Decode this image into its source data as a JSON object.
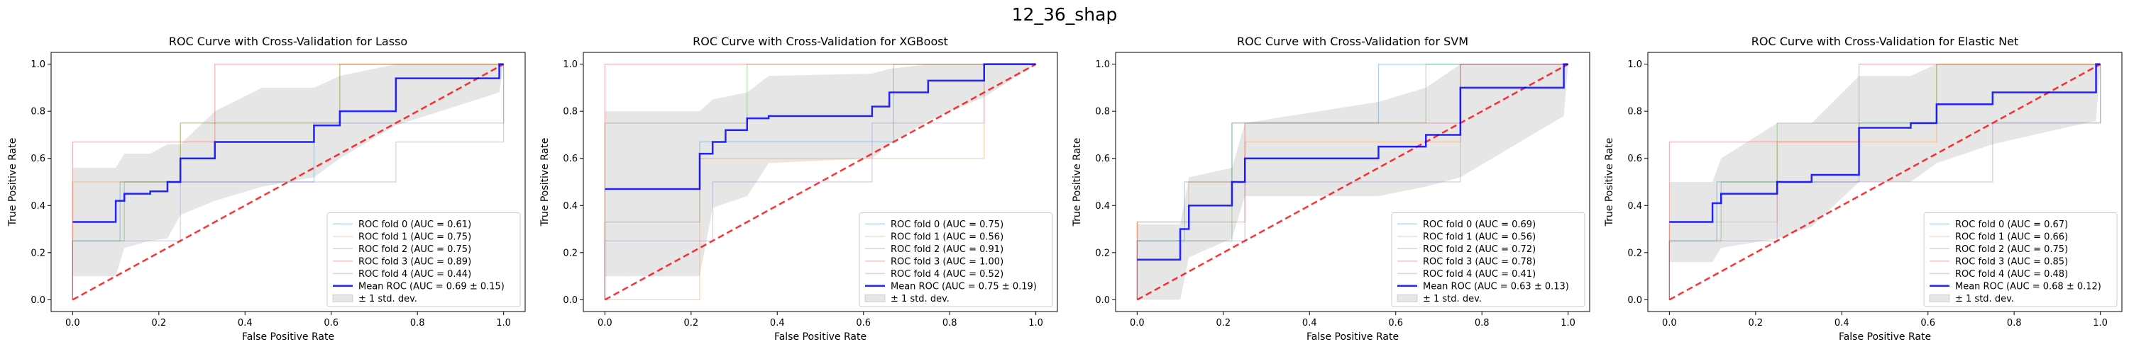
{
  "figure": {
    "suptitle": "12_36_shap"
  },
  "chart_data": [
    {
      "type": "line",
      "title": "ROC Curve with Cross-Validation for Lasso",
      "xlabel": "False Positive Rate",
      "ylabel": "True Positive Rate",
      "xlim": [
        -0.05,
        1.05
      ],
      "ylim": [
        -0.05,
        1.05
      ],
      "xticks": [
        "0.0",
        "0.2",
        "0.4",
        "0.6",
        "0.8",
        "1.0"
      ],
      "yticks": [
        "0.0",
        "0.2",
        "0.4",
        "0.6",
        "0.8",
        "1.0"
      ],
      "grid": false,
      "legend_position": "lower right",
      "series": [
        {
          "name": "ROC fold 0 (AUC = 0.61)",
          "color": "#1f77b4",
          "x": [
            0,
            0,
            0.11,
            0.11,
            0.56,
            0.56,
            1,
            1
          ],
          "y": [
            0,
            0.25,
            0.25,
            0.5,
            0.5,
            0.75,
            0.75,
            1
          ]
        },
        {
          "name": "ROC fold 1 (AUC = 0.75)",
          "color": "#ff7f0e",
          "x": [
            0,
            0,
            0.25,
            0.25,
            0.62,
            0.62,
            1
          ],
          "y": [
            0,
            0.5,
            0.5,
            0.75,
            0.75,
            1,
            1
          ]
        },
        {
          "name": "ROC fold 2 (AUC = 0.75)",
          "color": "#2ca02c",
          "x": [
            0,
            0,
            0.12,
            0.12,
            0.25,
            0.25,
            0.62,
            0.62,
            1
          ],
          "y": [
            0,
            0.25,
            0.25,
            0.5,
            0.5,
            0.75,
            0.75,
            1,
            1
          ]
        },
        {
          "name": "ROC fold 3 (AUC = 0.89)",
          "color": "#d62728",
          "x": [
            0,
            0,
            0.33,
            0.33,
            1,
            1
          ],
          "y": [
            0,
            0.67,
            0.67,
            1,
            1,
            1
          ]
        },
        {
          "name": "ROC fold 4 (AUC = 0.44)",
          "color": "#9467bd",
          "x": [
            0,
            0,
            0.25,
            0.25,
            0.75,
            0.75,
            1,
            1
          ],
          "y": [
            0,
            0.25,
            0.25,
            0.5,
            0.5,
            0.67,
            0.67,
            1
          ]
        }
      ],
      "mean": {
        "name": "Mean ROC (AUC = 0.69 ± 0.15)",
        "color": "#0000ff",
        "x": [
          0,
          0.1,
          0.1,
          0.12,
          0.12,
          0.18,
          0.18,
          0.22,
          0.22,
          0.25,
          0.25,
          0.33,
          0.33,
          0.44,
          0.44,
          0.56,
          0.56,
          0.62,
          0.62,
          0.75,
          0.75,
          0.99,
          0.99,
          1
        ],
        "y": [
          0.33,
          0.33,
          0.42,
          0.42,
          0.45,
          0.45,
          0.46,
          0.46,
          0.5,
          0.5,
          0.6,
          0.6,
          0.67,
          0.67,
          0.67,
          0.67,
          0.74,
          0.74,
          0.8,
          0.8,
          0.94,
          0.94,
          1,
          1
        ]
      },
      "std_band": {
        "name": "± 1 std. dev.",
        "color": "#808080",
        "x": [
          0,
          0.1,
          0.12,
          0.18,
          0.22,
          0.25,
          0.33,
          0.44,
          0.56,
          0.62,
          0.75,
          0.99,
          1
        ],
        "upper": [
          0.56,
          0.56,
          0.62,
          0.62,
          0.66,
          0.66,
          0.8,
          0.9,
          0.9,
          0.95,
          1,
          1,
          1
        ],
        "lower": [
          0.1,
          0.1,
          0.22,
          0.25,
          0.26,
          0.36,
          0.42,
          0.48,
          0.52,
          0.6,
          0.74,
          0.88,
          1
        ]
      },
      "chance": {
        "color": "#ff0000",
        "x": [
          0,
          1
        ],
        "y": [
          0,
          1
        ]
      }
    },
    {
      "type": "line",
      "title": "ROC Curve with Cross-Validation for XGBoost",
      "xlabel": "False Positive Rate",
      "ylabel": "True Positive Rate",
      "xlim": [
        -0.05,
        1.05
      ],
      "ylim": [
        -0.05,
        1.05
      ],
      "xticks": [
        "0.0",
        "0.2",
        "0.4",
        "0.6",
        "0.8",
        "1.0"
      ],
      "yticks": [
        "0.0",
        "0.2",
        "0.4",
        "0.6",
        "0.8",
        "1.0"
      ],
      "grid": false,
      "legend_position": "lower right",
      "series": [
        {
          "name": "ROC fold 0 (AUC = 0.75)",
          "color": "#1f77b4",
          "x": [
            0,
            0,
            0.22,
            0.22,
            0.67,
            0.67,
            1
          ],
          "y": [
            0,
            0.33,
            0.33,
            0.67,
            0.67,
            1,
            1
          ]
        },
        {
          "name": "ROC fold 1 (AUC = 0.56)",
          "color": "#ff7f0e",
          "x": [
            0,
            0,
            0.22,
            0.22,
            0.88,
            0.88,
            1
          ],
          "y": [
            0,
            0,
            0,
            0.6,
            0.6,
            1,
            1
          ]
        },
        {
          "name": "ROC fold 2 (AUC = 0.91)",
          "color": "#2ca02c",
          "x": [
            0,
            0,
            0.33,
            0.33,
            1
          ],
          "y": [
            0,
            0.75,
            0.75,
            1,
            1
          ]
        },
        {
          "name": "ROC fold 3 (AUC = 1.00)",
          "color": "#d62728",
          "x": [
            0,
            0,
            1
          ],
          "y": [
            0,
            1,
            1
          ]
        },
        {
          "name": "ROC fold 4 (AUC = 0.52)",
          "color": "#9467bd",
          "x": [
            0,
            0,
            0.25,
            0.25,
            0.62,
            0.62,
            0.88,
            0.88,
            1
          ],
          "y": [
            0,
            0.25,
            0.25,
            0.5,
            0.5,
            0.75,
            0.75,
            1,
            1
          ]
        }
      ],
      "mean": {
        "name": "Mean ROC (AUC = 0.75 ± 0.19)",
        "color": "#0000ff",
        "x": [
          0,
          0.22,
          0.22,
          0.25,
          0.25,
          0.28,
          0.28,
          0.33,
          0.33,
          0.38,
          0.38,
          0.62,
          0.62,
          0.66,
          0.66,
          0.75,
          0.75,
          0.88,
          0.88,
          1
        ],
        "y": [
          0.47,
          0.47,
          0.62,
          0.62,
          0.67,
          0.67,
          0.72,
          0.72,
          0.77,
          0.77,
          0.78,
          0.78,
          0.82,
          0.82,
          0.88,
          0.88,
          0.93,
          0.93,
          1,
          1
        ]
      },
      "std_band": {
        "name": "± 1 std. dev.",
        "color": "#808080",
        "x": [
          0,
          0.22,
          0.25,
          0.33,
          0.38,
          0.62,
          0.66,
          0.75,
          0.88,
          1
        ],
        "upper": [
          0.8,
          0.8,
          0.85,
          0.88,
          0.95,
          0.96,
          0.98,
          1,
          1,
          1
        ],
        "lower": [
          0.1,
          0.1,
          0.39,
          0.44,
          0.58,
          0.6,
          0.66,
          0.76,
          0.86,
          1
        ]
      },
      "chance": {
        "color": "#ff0000",
        "x": [
          0,
          1
        ],
        "y": [
          0,
          1
        ]
      }
    },
    {
      "type": "line",
      "title": "ROC Curve with Cross-Validation for SVM",
      "xlabel": "False Positive Rate",
      "ylabel": "True Positive Rate",
      "xlim": [
        -0.05,
        1.05
      ],
      "ylim": [
        -0.05,
        1.05
      ],
      "xticks": [
        "0.0",
        "0.2",
        "0.4",
        "0.6",
        "0.8",
        "1.0"
      ],
      "yticks": [
        "0.0",
        "0.2",
        "0.4",
        "0.6",
        "0.8",
        "1.0"
      ],
      "grid": false,
      "legend_position": "lower right",
      "series": [
        {
          "name": "ROC fold 0 (AUC = 0.69)",
          "color": "#1f77b4",
          "x": [
            0,
            0,
            0.11,
            0.11,
            0.22,
            0.22,
            0.56,
            0.56,
            1
          ],
          "y": [
            0,
            0.25,
            0.25,
            0.5,
            0.5,
            0.75,
            0.75,
            1,
            1
          ]
        },
        {
          "name": "ROC fold 1 (AUC = 0.56)",
          "color": "#ff7f0e",
          "x": [
            0,
            0,
            0.12,
            0.12,
            0.25,
            0.25,
            0.75,
            0.75,
            1
          ],
          "y": [
            0,
            0.33,
            0.33,
            0.5,
            0.5,
            0.67,
            0.67,
            1,
            1
          ]
        },
        {
          "name": "ROC fold 2 (AUC = 0.72)",
          "color": "#2ca02c",
          "x": [
            0,
            0,
            0.22,
            0.22,
            0.67,
            0.67,
            1
          ],
          "y": [
            0,
            0.25,
            0.25,
            0.75,
            0.75,
            1,
            1
          ]
        },
        {
          "name": "ROC fold 3 (AUC = 0.78)",
          "color": "#d62728",
          "x": [
            0,
            0,
            0.25,
            0.25,
            0.75,
            0.75,
            1
          ],
          "y": [
            0,
            0.33,
            0.33,
            0.75,
            0.75,
            1,
            1
          ]
        },
        {
          "name": "ROC fold 4 (AUC = 0.41)",
          "color": "#9467bd",
          "x": [
            0,
            0,
            0.25,
            0.25,
            0.75,
            0.75,
            1
          ],
          "y": [
            0,
            0.25,
            0.25,
            0.5,
            0.5,
            1,
            1
          ]
        }
      ],
      "mean": {
        "name": "Mean ROC (AUC = 0.63 ± 0.13)",
        "color": "#0000ff",
        "x": [
          0,
          0.1,
          0.1,
          0.12,
          0.12,
          0.22,
          0.22,
          0.25,
          0.25,
          0.56,
          0.56,
          0.67,
          0.67,
          0.75,
          0.75,
          0.99,
          0.99,
          1
        ],
        "y": [
          0.17,
          0.17,
          0.3,
          0.3,
          0.4,
          0.4,
          0.5,
          0.5,
          0.6,
          0.6,
          0.65,
          0.65,
          0.7,
          0.7,
          0.9,
          0.9,
          1,
          1
        ]
      },
      "std_band": {
        "name": "± 1 std. dev.",
        "color": "#808080",
        "x": [
          0,
          0.1,
          0.12,
          0.22,
          0.25,
          0.56,
          0.67,
          0.75,
          0.99,
          1
        ],
        "upper": [
          0.32,
          0.32,
          0.52,
          0.56,
          0.75,
          0.84,
          0.9,
          1,
          1,
          1
        ],
        "lower": [
          0,
          0,
          0.18,
          0.26,
          0.44,
          0.44,
          0.48,
          0.52,
          0.78,
          1
        ]
      },
      "chance": {
        "color": "#ff0000",
        "x": [
          0,
          1
        ],
        "y": [
          0,
          1
        ]
      }
    },
    {
      "type": "line",
      "title": "ROC Curve with Cross-Validation for Elastic Net",
      "xlabel": "False Positive Rate",
      "ylabel": "True Positive Rate",
      "xlim": [
        -0.05,
        1.05
      ],
      "ylim": [
        -0.05,
        1.05
      ],
      "xticks": [
        "0.0",
        "0.2",
        "0.4",
        "0.6",
        "0.8",
        "1.0"
      ],
      "yticks": [
        "0.0",
        "0.2",
        "0.4",
        "0.6",
        "0.8",
        "1.0"
      ],
      "grid": false,
      "legend_position": "lower right",
      "series": [
        {
          "name": "ROC fold 0 (AUC = 0.67)",
          "color": "#1f77b4",
          "x": [
            0,
            0,
            0.11,
            0.11,
            0.44,
            0.44,
            1,
            1
          ],
          "y": [
            0,
            0.25,
            0.25,
            0.5,
            0.5,
            0.75,
            0.75,
            1
          ]
        },
        {
          "name": "ROC fold 1 (AUC = 0.66)",
          "color": "#ff7f0e",
          "x": [
            0,
            0,
            0.25,
            0.25,
            0.62,
            0.62,
            1
          ],
          "y": [
            0,
            0.33,
            0.33,
            0.67,
            0.67,
            1,
            1
          ]
        },
        {
          "name": "ROC fold 2 (AUC = 0.75)",
          "color": "#2ca02c",
          "x": [
            0,
            0,
            0.12,
            0.12,
            0.25,
            0.25,
            0.62,
            0.62,
            1
          ],
          "y": [
            0,
            0.25,
            0.25,
            0.5,
            0.5,
            0.75,
            0.75,
            1,
            1
          ]
        },
        {
          "name": "ROC fold 3 (AUC = 0.85)",
          "color": "#d62728",
          "x": [
            0,
            0,
            0.44,
            0.44,
            1,
            1
          ],
          "y": [
            0,
            0.67,
            0.67,
            1,
            1,
            1
          ]
        },
        {
          "name": "ROC fold 4 (AUC = 0.48)",
          "color": "#9467bd",
          "x": [
            0,
            0,
            0.25,
            0.25,
            0.75,
            0.75,
            1,
            1
          ],
          "y": [
            0,
            0.25,
            0.25,
            0.5,
            0.5,
            0.75,
            0.75,
            1
          ]
        }
      ],
      "mean": {
        "name": "Mean ROC (AUC = 0.68 ± 0.12)",
        "color": "#0000ff",
        "x": [
          0,
          0.1,
          0.1,
          0.12,
          0.12,
          0.25,
          0.25,
          0.33,
          0.33,
          0.44,
          0.44,
          0.56,
          0.56,
          0.62,
          0.62,
          0.75,
          0.75,
          0.99,
          0.99,
          1
        ],
        "y": [
          0.33,
          0.33,
          0.41,
          0.41,
          0.45,
          0.45,
          0.5,
          0.5,
          0.53,
          0.53,
          0.73,
          0.73,
          0.75,
          0.75,
          0.83,
          0.83,
          0.88,
          0.88,
          1,
          1
        ]
      },
      "std_band": {
        "name": "± 1 std. dev.",
        "color": "#808080",
        "x": [
          0,
          0.1,
          0.12,
          0.25,
          0.33,
          0.44,
          0.56,
          0.62,
          0.75,
          0.99,
          1
        ],
        "upper": [
          0.5,
          0.5,
          0.6,
          0.75,
          0.75,
          0.95,
          0.95,
          1,
          1,
          1,
          1
        ],
        "lower": [
          0.16,
          0.16,
          0.22,
          0.26,
          0.31,
          0.5,
          0.5,
          0.58,
          0.66,
          0.76,
          1
        ]
      },
      "chance": {
        "color": "#ff0000",
        "x": [
          0,
          1
        ],
        "y": [
          0,
          1
        ]
      }
    }
  ]
}
